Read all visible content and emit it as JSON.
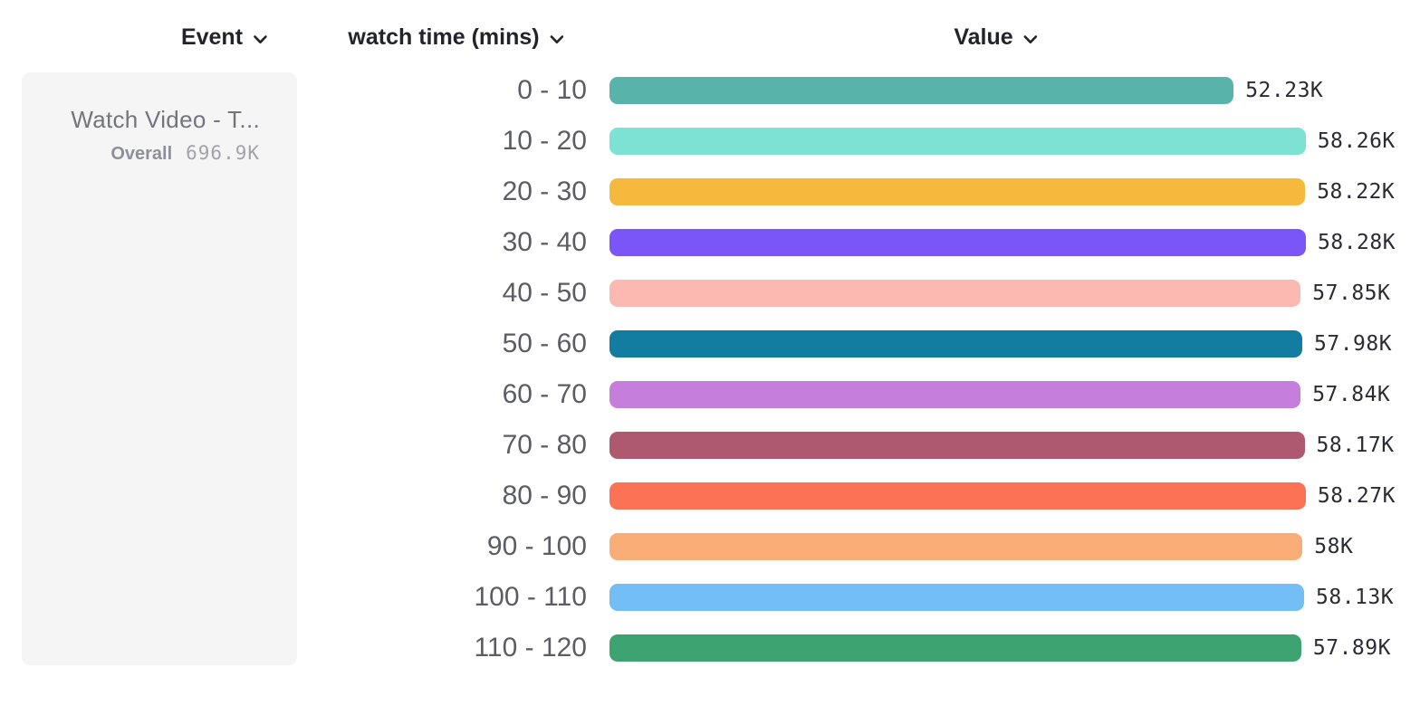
{
  "columns": [
    {
      "label": "Event",
      "icon": "chevron-down"
    },
    {
      "label": "watch time (mins)",
      "icon": "chevron-down"
    },
    {
      "label": "Value",
      "icon": "chevron-down"
    }
  ],
  "event_card": {
    "title": "Watch Video - T...",
    "overall_label": "Overall",
    "overall_value": "696.9K"
  },
  "chart_data": {
    "type": "bar",
    "orientation": "horizontal",
    "title": "",
    "xlabel": "Value",
    "ylabel": "watch time (mins)",
    "xlim": [
      0,
      58280
    ],
    "grid": false,
    "legend": "none",
    "categories": [
      "0 - 10",
      "10 - 20",
      "20 - 30",
      "30 - 40",
      "40 - 50",
      "50 - 60",
      "60 - 70",
      "70 - 80",
      "80 - 90",
      "90 - 100",
      "100 - 110",
      "110 - 120"
    ],
    "values": [
      52230,
      58260,
      58220,
      58280,
      57850,
      57980,
      57840,
      58170,
      58270,
      58000,
      58130,
      57890
    ],
    "value_labels": [
      "52.23K",
      "58.26K",
      "58.22K",
      "58.28K",
      "57.85K",
      "57.98K",
      "57.84K",
      "58.17K",
      "58.27K",
      "58K",
      "58.13K",
      "57.89K"
    ],
    "bar_colors": [
      "#58B4AB",
      "#7DE1D4",
      "#F5B93D",
      "#7A55F7",
      "#FBB9B1",
      "#137DA1",
      "#C67EDD",
      "#AE5970",
      "#FB7255",
      "#FAAD77",
      "#73BEF4",
      "#3DA471"
    ]
  },
  "icons": {
    "chevron_down": "v-shaped dropdown chevron"
  },
  "colors": {
    "card_bg": "#F5F5F6",
    "header_text": "#23232B",
    "bucket_text": "#5C5C66",
    "value_text": "#2B2B35"
  }
}
